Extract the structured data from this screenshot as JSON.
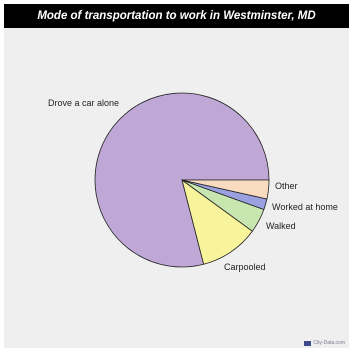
{
  "chart_data": {
    "type": "pie",
    "title": "Mode of transportation to work in Westminster, MD",
    "categories": [
      "Drove a car alone",
      "Carpooled",
      "Walked",
      "Worked at home",
      "Other"
    ],
    "values": [
      79,
      11,
      4.5,
      2,
      3.5
    ],
    "colors": [
      "#c0a8d6",
      "#f7f49c",
      "#c8e6b0",
      "#9aa0e0",
      "#f9dcc0"
    ],
    "legend": "none"
  },
  "watermark": {
    "text": "City-Data.com",
    "icon": "city-data-logo-icon"
  }
}
